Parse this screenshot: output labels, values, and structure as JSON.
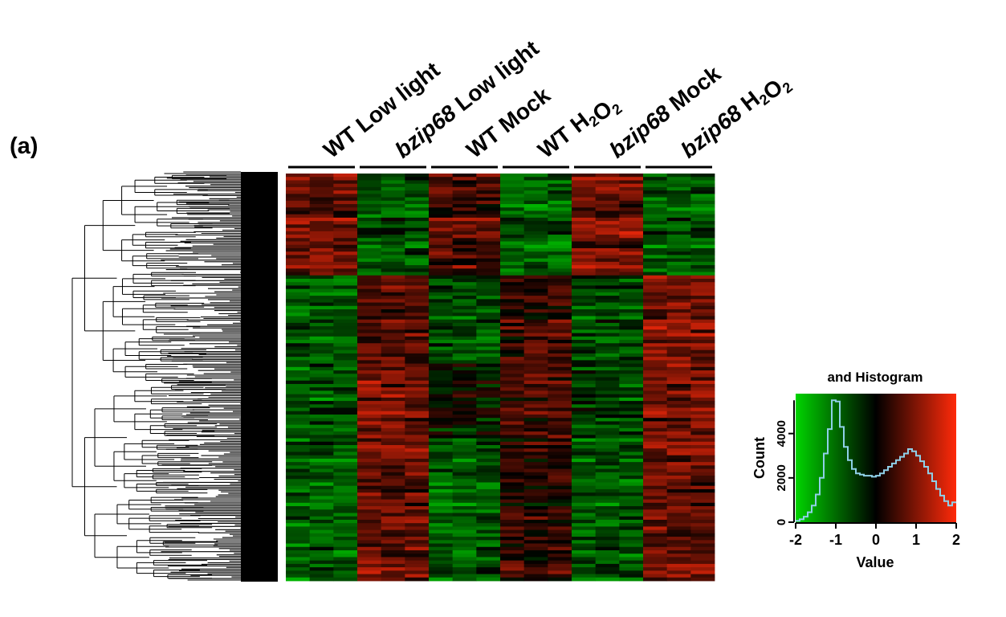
{
  "panel_label": "(a)",
  "colors": {
    "low": "#00d400",
    "mid": "#000000",
    "high": "#ff2a0a",
    "histogram_line": "#8fd0e8"
  },
  "chart_data": [
    {
      "type": "heatmap",
      "title": "",
      "groups": [
        {
          "label": "WT Low light",
          "parts": [
            {
              "text": "WT Low light",
              "italic": false
            }
          ],
          "replicates": 3
        },
        {
          "label": "bzip68 Low light",
          "parts": [
            {
              "text": "bzip68",
              "italic": true
            },
            {
              "text": " Low light",
              "italic": false
            }
          ],
          "replicates": 3
        },
        {
          "label": "WT Mock",
          "parts": [
            {
              "text": "WT Mock",
              "italic": false
            }
          ],
          "replicates": 3
        },
        {
          "label": "WT H2O2",
          "parts": [
            {
              "text": "WT H",
              "italic": false
            },
            {
              "text": "2",
              "sub": true
            },
            {
              "text": "O",
              "italic": false
            },
            {
              "text": "2",
              "sub": true
            }
          ],
          "replicates": 3
        },
        {
          "label": "bzip68 Mock",
          "parts": [
            {
              "text": "bzip68",
              "italic": true
            },
            {
              "text": " Mock",
              "italic": false
            }
          ],
          "replicates": 3
        },
        {
          "label": "bzip68 H2O2",
          "parts": [
            {
              "text": "bzip68",
              "italic": true
            },
            {
              "text": " H",
              "italic": false
            },
            {
              "text": "2",
              "sub": true
            },
            {
              "text": "O",
              "italic": false
            },
            {
              "text": "2",
              "sub": true
            }
          ],
          "replicates": 3
        }
      ],
      "value_range": [
        -2,
        2
      ],
      "row_dendrogram": true,
      "clusters": [
        {
          "rows": 30,
          "means": [
            0.9,
            0.9,
            0.9,
            -0.7,
            -0.7,
            -0.7,
            0.6,
            0.6,
            0.6,
            -0.9,
            -0.9,
            -0.9,
            0.9,
            0.9,
            0.9,
            -0.8,
            -0.8,
            -0.8
          ]
        },
        {
          "rows": 26,
          "means": [
            -0.8,
            -0.8,
            -0.8,
            0.6,
            0.6,
            0.6,
            -0.7,
            -0.7,
            -0.7,
            0.4,
            0.4,
            0.4,
            -0.7,
            -0.7,
            -0.7,
            0.9,
            0.9,
            0.9
          ]
        },
        {
          "rows": 22,
          "means": [
            -0.8,
            -0.8,
            -0.8,
            0.8,
            0.8,
            0.8,
            -0.2,
            -0.2,
            -0.2,
            0.5,
            0.5,
            0.5,
            -0.6,
            -0.6,
            -0.6,
            0.8,
            0.8,
            0.8
          ]
        },
        {
          "rows": 42,
          "means": [
            -0.9,
            -0.9,
            -0.9,
            0.8,
            0.8,
            0.8,
            -0.8,
            -0.8,
            -0.8,
            0.3,
            0.3,
            0.3,
            -0.8,
            -0.8,
            -0.8,
            0.8,
            0.8,
            0.8
          ]
        }
      ]
    },
    {
      "type": "line",
      "title": "and Histogram",
      "xlabel": "Value",
      "ylabel": "Count",
      "xlim": [
        -2,
        2
      ],
      "ylim": [
        0,
        5800
      ],
      "xticks": [
        -2,
        -1,
        0,
        1,
        2
      ],
      "yticks": [
        0,
        2000,
        4000
      ],
      "color_key": true,
      "series": [
        {
          "x": [
            -2.0,
            -1.9,
            -1.8,
            -1.7,
            -1.6,
            -1.5,
            -1.4,
            -1.3,
            -1.2,
            -1.1,
            -1.0,
            -0.9,
            -0.8,
            -0.7,
            -0.6,
            -0.5,
            -0.4,
            -0.3,
            -0.2,
            -0.1,
            0.0,
            0.1,
            0.2,
            0.3,
            0.4,
            0.5,
            0.6,
            0.7,
            0.8,
            0.9,
            1.0,
            1.1,
            1.2,
            1.3,
            1.4,
            1.5,
            1.6,
            1.7,
            1.8,
            1.9
          ],
          "values": [
            60,
            130,
            250,
            450,
            750,
            1250,
            2000,
            3100,
            4200,
            5500,
            5450,
            4300,
            3400,
            2800,
            2400,
            2200,
            2150,
            2100,
            2100,
            2050,
            2100,
            2200,
            2350,
            2500,
            2650,
            2800,
            2950,
            3100,
            3300,
            3200,
            3000,
            2750,
            2500,
            2200,
            1850,
            1500,
            1200,
            950,
            750,
            900
          ]
        }
      ]
    }
  ]
}
